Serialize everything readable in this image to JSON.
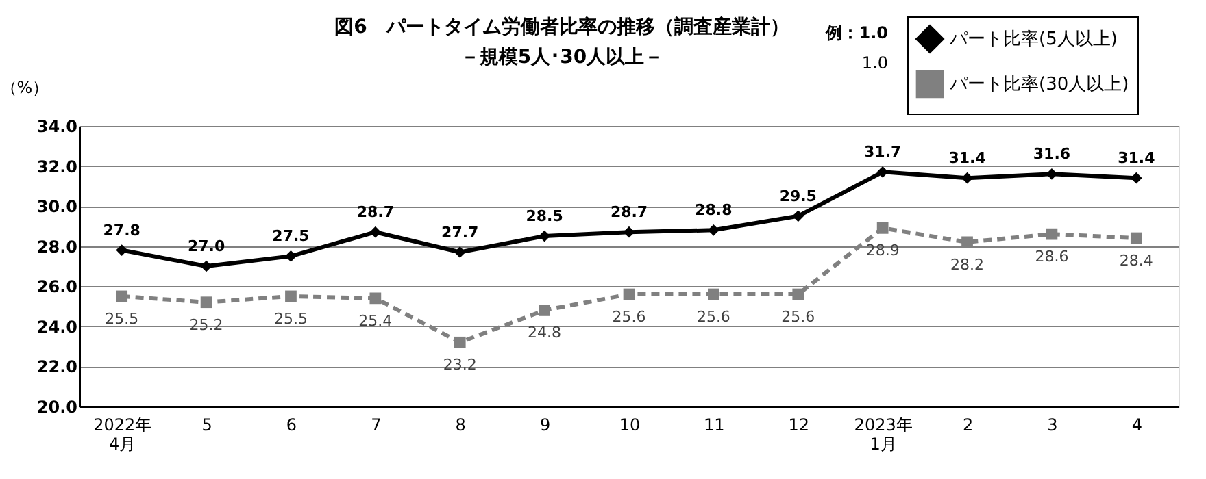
{
  "chart_data": {
    "type": "line",
    "title": "図6　パートタイム労働者比率の推移（調査産業計）",
    "subtitle": "－規模5人･30人以上－",
    "ylabel": "（%）",
    "categories": [
      "2022年\n4月",
      "5",
      "6",
      "7",
      "8",
      "9",
      "10",
      "11",
      "12",
      "2023年\n1月",
      "2",
      "3",
      "4"
    ],
    "series": [
      {
        "name": "パート比率(5人以上)",
        "color": "#000000",
        "marker": "diamond",
        "line_style": "solid",
        "values": [
          27.8,
          27.0,
          27.5,
          28.7,
          27.7,
          28.5,
          28.7,
          28.8,
          29.5,
          31.7,
          31.4,
          31.6,
          31.4
        ],
        "value_labels": [
          "27.8",
          "27.0",
          "27.5",
          "28.7",
          "27.7",
          "28.5",
          "28.7",
          "28.8",
          "29.5",
          "31.7",
          "31.4",
          "31.6",
          "31.4"
        ]
      },
      {
        "name": "パート比率(30人以上)",
        "color": "#808080",
        "marker": "square",
        "line_style": "dashed",
        "values": [
          25.5,
          25.2,
          25.5,
          25.4,
          23.2,
          24.8,
          25.6,
          25.6,
          25.6,
          28.9,
          28.2,
          28.6,
          28.4
        ],
        "value_labels": [
          "25.5",
          "25.2",
          "25.5",
          "25.4",
          "23.2",
          "24.8",
          "25.6",
          "25.6",
          "25.6",
          "28.9",
          "28.2",
          "28.6",
          "28.4"
        ]
      }
    ],
    "ylim": [
      20,
      34
    ],
    "yticks": [
      {
        "value": 20,
        "label": "20.0"
      },
      {
        "value": 22,
        "label": "22.0"
      },
      {
        "value": 24,
        "label": "24.0"
      },
      {
        "value": 26,
        "label": "26.0"
      },
      {
        "value": 28,
        "label": "28.0"
      },
      {
        "value": 30,
        "label": "30.0"
      },
      {
        "value": 32,
        "label": "32.0"
      },
      {
        "value": 34,
        "label": "34.0"
      }
    ],
    "grid": "y",
    "legend": "top right",
    "data_labels": true,
    "annotations": [
      "例：1.0",
      "1.0"
    ]
  }
}
